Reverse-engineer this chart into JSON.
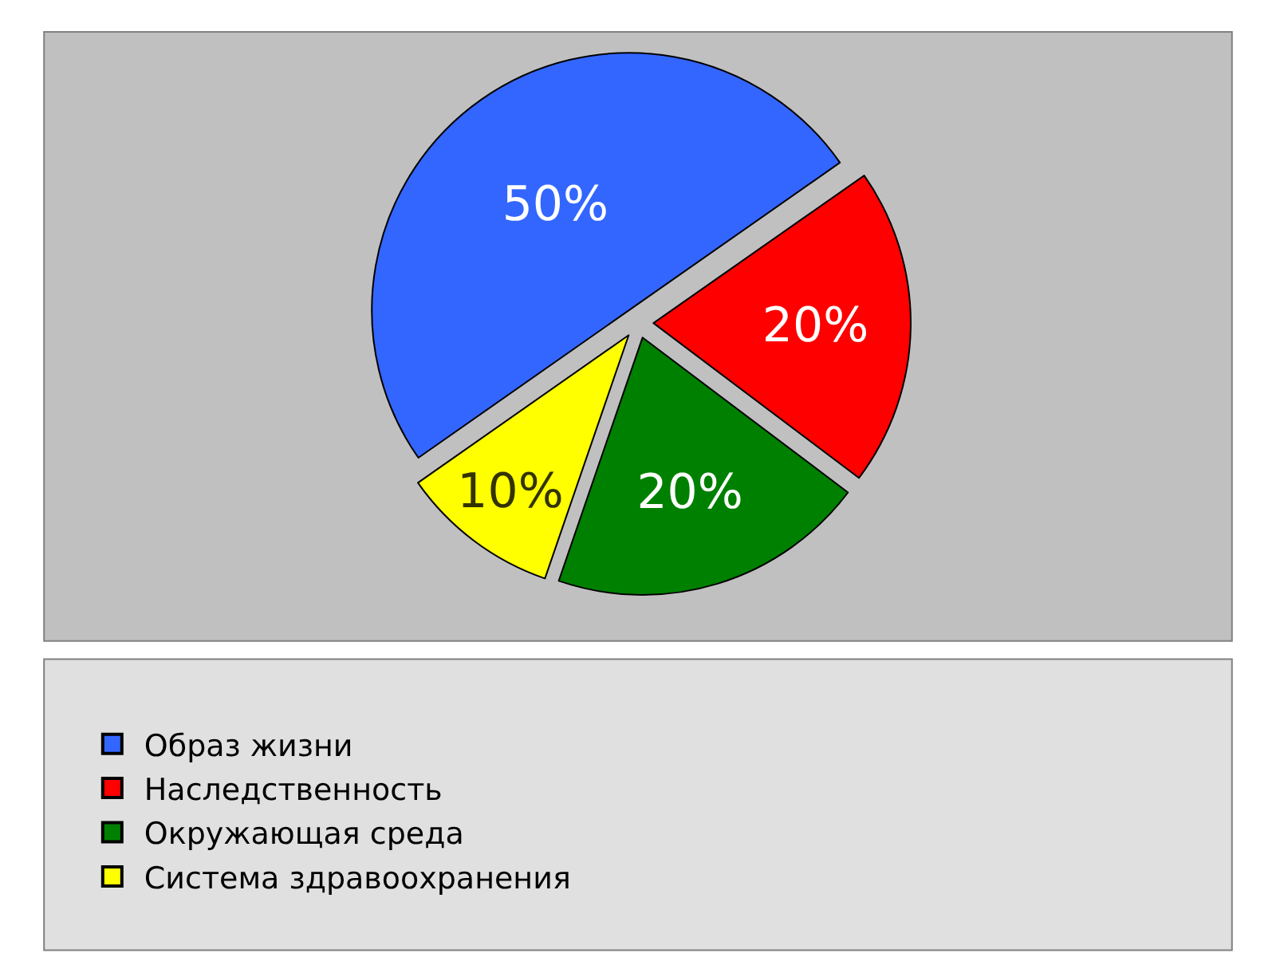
{
  "chart_data": {
    "type": "pie",
    "categories": [
      "Образ жизни",
      "Наследственность",
      "Окружающая среда",
      "Система здравоохранения"
    ],
    "values": [
      50,
      20,
      20,
      10
    ],
    "colors": [
      "#3366ff",
      "#ff0000",
      "#008000",
      "#ffff00"
    ],
    "value_labels": [
      "50%",
      "20%",
      "20%",
      "10%"
    ],
    "legend": "bottom"
  }
}
